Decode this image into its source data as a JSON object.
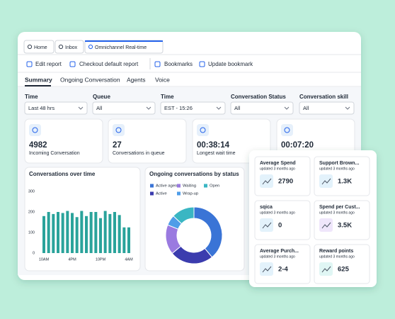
{
  "tabs": [
    "Home",
    "Inbox",
    "Omnichannel Real-time"
  ],
  "toolbar": [
    "Edit report",
    "Checkout default report",
    "Bookmarks",
    "Update bookmark"
  ],
  "nav": [
    "Summary",
    "Ongoing Conversation",
    "Agents",
    "Voice"
  ],
  "filters": [
    {
      "label": "Time",
      "value": "Last 48 hrs"
    },
    {
      "label": "Queue",
      "value": "All"
    },
    {
      "label": "Time",
      "value": "EST - 15:26"
    },
    {
      "label": "Conversation Status",
      "value": "All"
    },
    {
      "label": "Conversation skill",
      "value": "All"
    }
  ],
  "stats": [
    {
      "value": "4982",
      "label": "Incoming Conversation"
    },
    {
      "value": "27",
      "label": "Conversations in queue"
    },
    {
      "value": "00:38:14",
      "label": "Longest wait time"
    },
    {
      "value": "00:07:20"
    }
  ],
  "bar_chart": {
    "type": "bar",
    "title": "Conversations over time",
    "categories": [
      "10AM",
      null,
      null,
      null,
      null,
      null,
      "4PM",
      null,
      null,
      null,
      null,
      null,
      "10PM",
      null,
      null,
      null,
      null,
      null,
      "4AM"
    ],
    "values": [
      180,
      200,
      190,
      200,
      195,
      205,
      195,
      175,
      205,
      180,
      200,
      200,
      170,
      205,
      190,
      200,
      185,
      125,
      125
    ],
    "color": "#2aa39b",
    "ylim": [
      0,
      300
    ],
    "yticks": [
      0,
      100,
      200,
      300
    ]
  },
  "donut_chart": {
    "type": "pie",
    "title": "Ongoing conversations by status",
    "categories": [
      "Active agent",
      "Active",
      "Waiting",
      "Wrap-up",
      "Open"
    ],
    "values": [
      39,
      25,
      17,
      6,
      13
    ],
    "colors": [
      "#3a74d6",
      "#3b3cae",
      "#9a7ae0",
      "#4f9de8",
      "#3ab6c3"
    ]
  },
  "overlay": [
    {
      "title": "Average Spend",
      "subtitle": "updated 3 months ago",
      "value": "2790",
      "accent": "#e3f2fb"
    },
    {
      "title": "Support Brown...",
      "subtitle": "updated 3 months ago",
      "value": "1.3K",
      "accent": "#e3f2fb"
    },
    {
      "title": "sqica",
      "subtitle": "updated 3 months ago",
      "value": "0",
      "accent": "#e3f2fb"
    },
    {
      "title": "Spend per Cust...",
      "subtitle": "updated 3 months ago",
      "value": "3.5K",
      "accent": "#efe6fb"
    },
    {
      "title": "Average Purch...",
      "subtitle": "updated 3 months ago",
      "value": "2-4",
      "accent": "#e3f2fb"
    },
    {
      "title": "Reward points",
      "subtitle": "updated 3 months ago",
      "value": "625",
      "accent": "#e0f6f4"
    }
  ]
}
